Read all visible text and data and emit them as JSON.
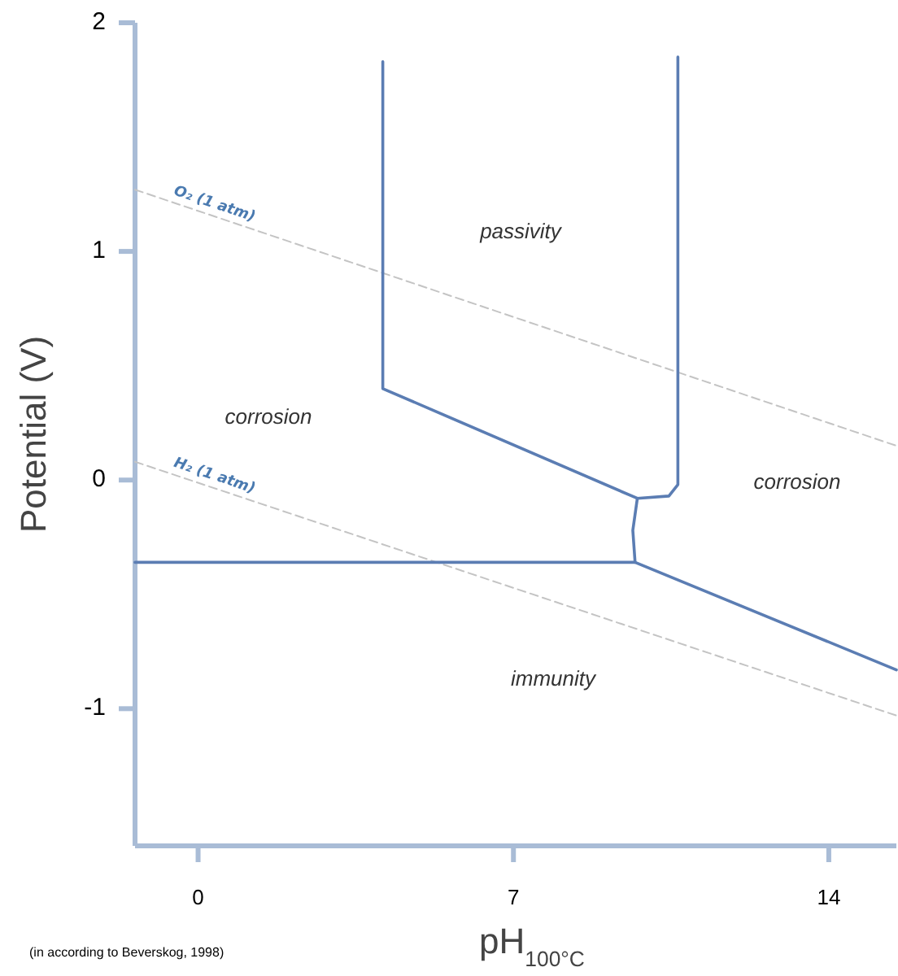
{
  "chart_data": {
    "type": "line",
    "xlabel": "pH$_{100°C}$",
    "ylabel": "Potential (V)",
    "xlim": [
      -1.4,
      15.5
    ],
    "ylim": [
      -1.6,
      2
    ],
    "xticks": [
      0,
      7,
      14
    ],
    "yticks": [
      -1,
      0,
      1,
      2
    ],
    "grid": false,
    "marker": "none",
    "series": [
      {
        "name": "O₂ (1 atm)",
        "color": "#c4c4c4",
        "line_style": "dashed",
        "x": [
          -1.4,
          15.5
        ],
        "values": [
          1.27,
          0.15
        ]
      },
      {
        "name": "H₂ (1 atm)",
        "color": "#c4c4c4",
        "line_style": "dashed",
        "x": [
          -1.4,
          15.5
        ],
        "values": [
          0.08,
          -1.03
        ]
      },
      {
        "color": "#5b7db3",
        "line_style": "solid",
        "x": [
          4.1,
          4.1,
          9.75,
          10.45,
          10.65,
          10.65
        ],
        "values": [
          1.83,
          0.4,
          -0.08,
          -0.07,
          -0.02,
          1.85
        ]
      },
      {
        "color": "#5b7db3",
        "line_style": "solid",
        "x": [
          -1.4,
          9.7,
          15.5
        ],
        "values": [
          -0.36,
          -0.36,
          -0.83
        ]
      },
      {
        "color": "#5b7db3",
        "line_style": "solid",
        "x": [
          9.75,
          9.65,
          9.7
        ],
        "values": [
          -0.08,
          -0.22,
          -0.36
        ]
      }
    ],
    "annotations": [
      "passivity",
      "corrosion",
      "corrosion",
      "immunity",
      "(in according to Beverskog, 1998)"
    ]
  }
}
